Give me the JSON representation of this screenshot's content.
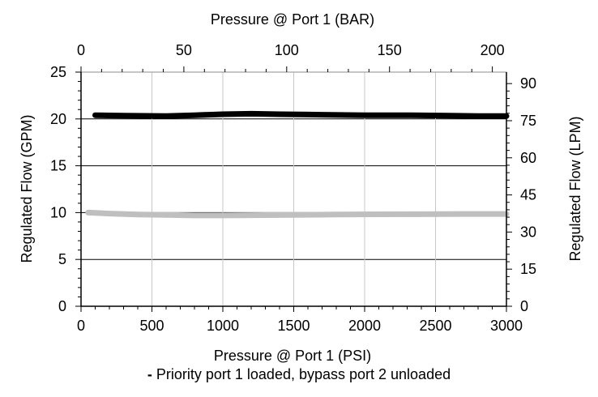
{
  "chart_data": {
    "type": "line",
    "x_axis_bottom": {
      "label": "Pressure @ Port 1 (PSI)",
      "range": [
        0,
        3000
      ],
      "ticks": [
        0,
        500,
        1000,
        1500,
        2000,
        2500,
        3000
      ]
    },
    "x_axis_top": {
      "label": "Pressure @ Port 1 (BAR)",
      "range": [
        0,
        206.85
      ],
      "ticks": [
        0,
        50,
        100,
        150,
        200
      ]
    },
    "y_axis_left": {
      "label": "Regulated Flow (GPM)",
      "range": [
        0,
        25
      ],
      "ticks": [
        0,
        5,
        10,
        15,
        20,
        25
      ]
    },
    "y_axis_right": {
      "label": "Regulated Flow (LPM)",
      "range": [
        0,
        94.64
      ],
      "ticks": [
        0,
        15,
        30,
        45,
        60,
        75,
        90
      ]
    },
    "grid": true,
    "series": [
      {
        "color": "#000000",
        "x": [
          100,
          300,
          600,
          800,
          1000,
          1200,
          1400,
          1700,
          2000,
          2300,
          2600,
          2800,
          3000
        ],
        "y": [
          20.4,
          20.35,
          20.3,
          20.4,
          20.5,
          20.55,
          20.5,
          20.45,
          20.4,
          20.4,
          20.35,
          20.3,
          20.3
        ]
      },
      {
        "color": "#bfbfbf",
        "x": [
          50,
          200,
          400,
          600,
          800,
          1000,
          1200,
          1500,
          1800,
          2100,
          2400,
          2700,
          3000
        ],
        "y": [
          10.0,
          9.9,
          9.8,
          9.75,
          9.7,
          9.7,
          9.72,
          9.75,
          9.8,
          9.82,
          9.83,
          9.85,
          9.85
        ]
      }
    ]
  },
  "caption": {
    "dash": "-",
    "text": " Priority port 1 loaded, bypass port 2 unloaded"
  }
}
